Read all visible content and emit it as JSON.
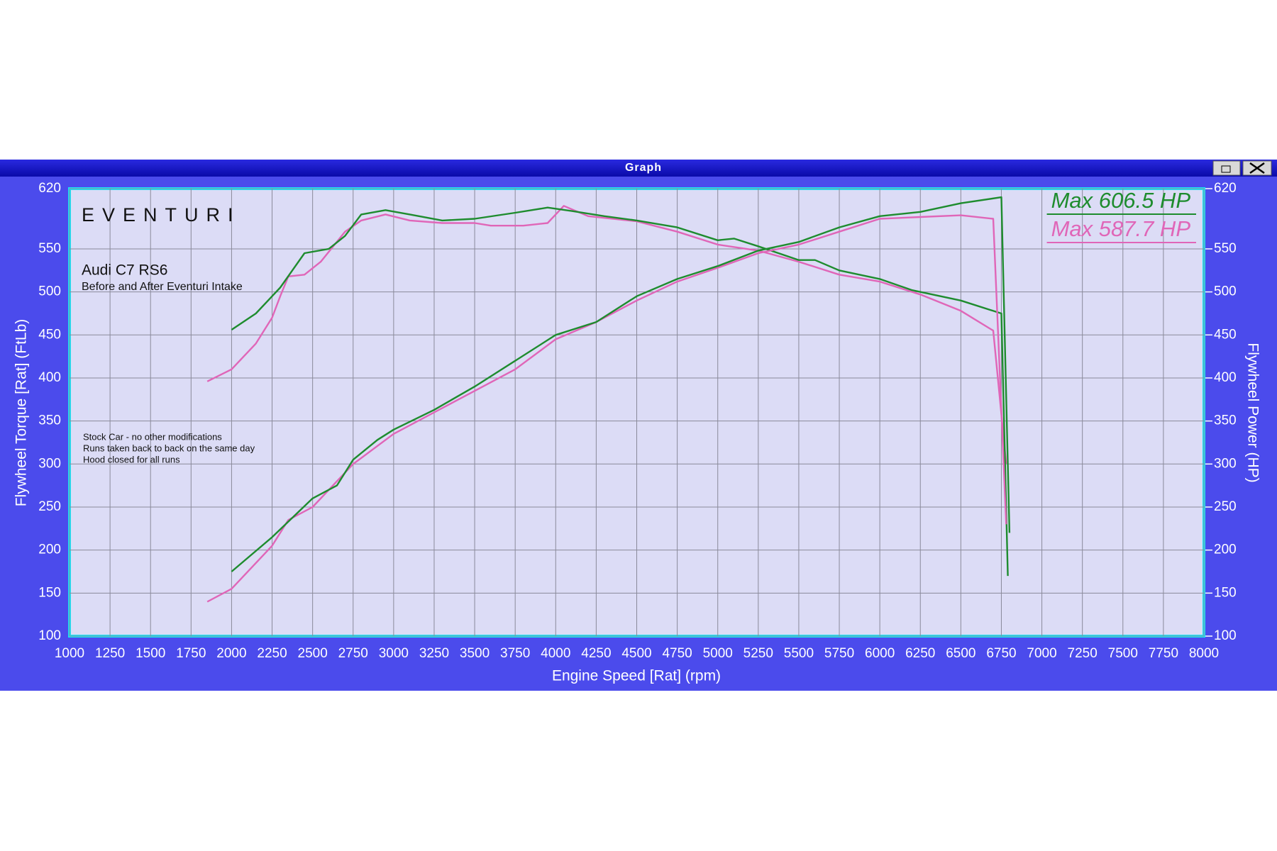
{
  "window_title": "Graph",
  "chart_data": {
    "type": "line",
    "logo": "EVENTURI",
    "title": "Audi C7 RS6",
    "subtitle": "Before and After Eventuri Intake",
    "notes": [
      "Stock Car - no other modifications",
      "Runs taken back to back on the same day",
      "Hood closed for all runs"
    ],
    "annotations": [
      {
        "text": "Max 606.5 HP",
        "color": "#1e8c2e"
      },
      {
        "text": "Max 587.7 HP",
        "color": "#e066b8"
      }
    ],
    "x_label": "Engine Speed [Rat] (rpm)",
    "y_label": "Flywheel Torque [Rat] (FtLb)",
    "y2_label": "Flywheel Power (HP)",
    "xlim": [
      1000,
      8000
    ],
    "xticks": [
      1000,
      1250,
      1500,
      1750,
      2000,
      2250,
      2500,
      2750,
      3000,
      3250,
      3500,
      3750,
      4000,
      4250,
      4500,
      4750,
      5000,
      5250,
      5500,
      5750,
      6000,
      6250,
      6500,
      6750,
      7000,
      7250,
      7500,
      7750,
      8000
    ],
    "ylim": [
      100,
      620
    ],
    "yticks": [
      100,
      150,
      200,
      250,
      300,
      350,
      400,
      450,
      500,
      550,
      620
    ],
    "y2lim": [
      100,
      620
    ],
    "y2ticks": [
      100,
      150,
      200,
      250,
      300,
      350,
      400,
      450,
      500,
      550,
      620
    ],
    "grid": true,
    "series": [
      {
        "color": "#e066b8",
        "x": [
          1850,
          2000,
          2150,
          2250,
          2300,
          2350,
          2450,
          2550,
          2700,
          2800,
          2950,
          3100,
          3300,
          3500,
          3600,
          3800,
          3950,
          4050,
          4200,
          4500,
          4750,
          5000,
          5250,
          5500,
          5750,
          6000,
          6250,
          6500,
          6700,
          6780
        ],
        "values": [
          396,
          410,
          440,
          470,
          495,
          518,
          520,
          535,
          570,
          583,
          590,
          583,
          580,
          580,
          577,
          577,
          580,
          600,
          588,
          582,
          570,
          555,
          548,
          535,
          520,
          512,
          497,
          478,
          455,
          300
        ]
      },
      {
        "color": "#1e8c2e",
        "x": [
          2000,
          2150,
          2300,
          2450,
          2600,
          2700,
          2800,
          2950,
          3100,
          3300,
          3500,
          3750,
          3950,
          4100,
          4300,
          4500,
          4750,
          5000,
          5100,
          5250,
          5500,
          5600,
          5750,
          6000,
          6200,
          6500,
          6750,
          6790
        ],
        "values": [
          456,
          475,
          505,
          545,
          550,
          565,
          590,
          595,
          590,
          583,
          585,
          592,
          598,
          594,
          588,
          583,
          575,
          560,
          562,
          553,
          537,
          537,
          525,
          515,
          502,
          490,
          475,
          170
        ]
      },
      {
        "color": "#e066b8",
        "axis": "y2",
        "x": [
          1850,
          2000,
          2250,
          2350,
          2500,
          2750,
          3000,
          3250,
          3500,
          3750,
          4000,
          4250,
          4500,
          4750,
          5000,
          5250,
          5500,
          5750,
          6000,
          6250,
          6500,
          6700,
          6780
        ],
        "values": [
          140,
          155,
          205,
          235,
          250,
          300,
          335,
          360,
          385,
          410,
          445,
          465,
          490,
          512,
          528,
          545,
          555,
          570,
          585,
          587,
          589,
          585,
          230
        ]
      },
      {
        "color": "#1e8c2e",
        "axis": "y2",
        "x": [
          2000,
          2250,
          2500,
          2650,
          2750,
          2900,
          3000,
          3250,
          3500,
          3750,
          4000,
          4250,
          4500,
          4750,
          5000,
          5250,
          5500,
          5750,
          6000,
          6250,
          6500,
          6750,
          6800
        ],
        "values": [
          175,
          215,
          260,
          275,
          305,
          328,
          340,
          363,
          390,
          420,
          450,
          465,
          495,
          515,
          530,
          548,
          558,
          575,
          588,
          593,
          603,
          610,
          220
        ]
      }
    ]
  }
}
